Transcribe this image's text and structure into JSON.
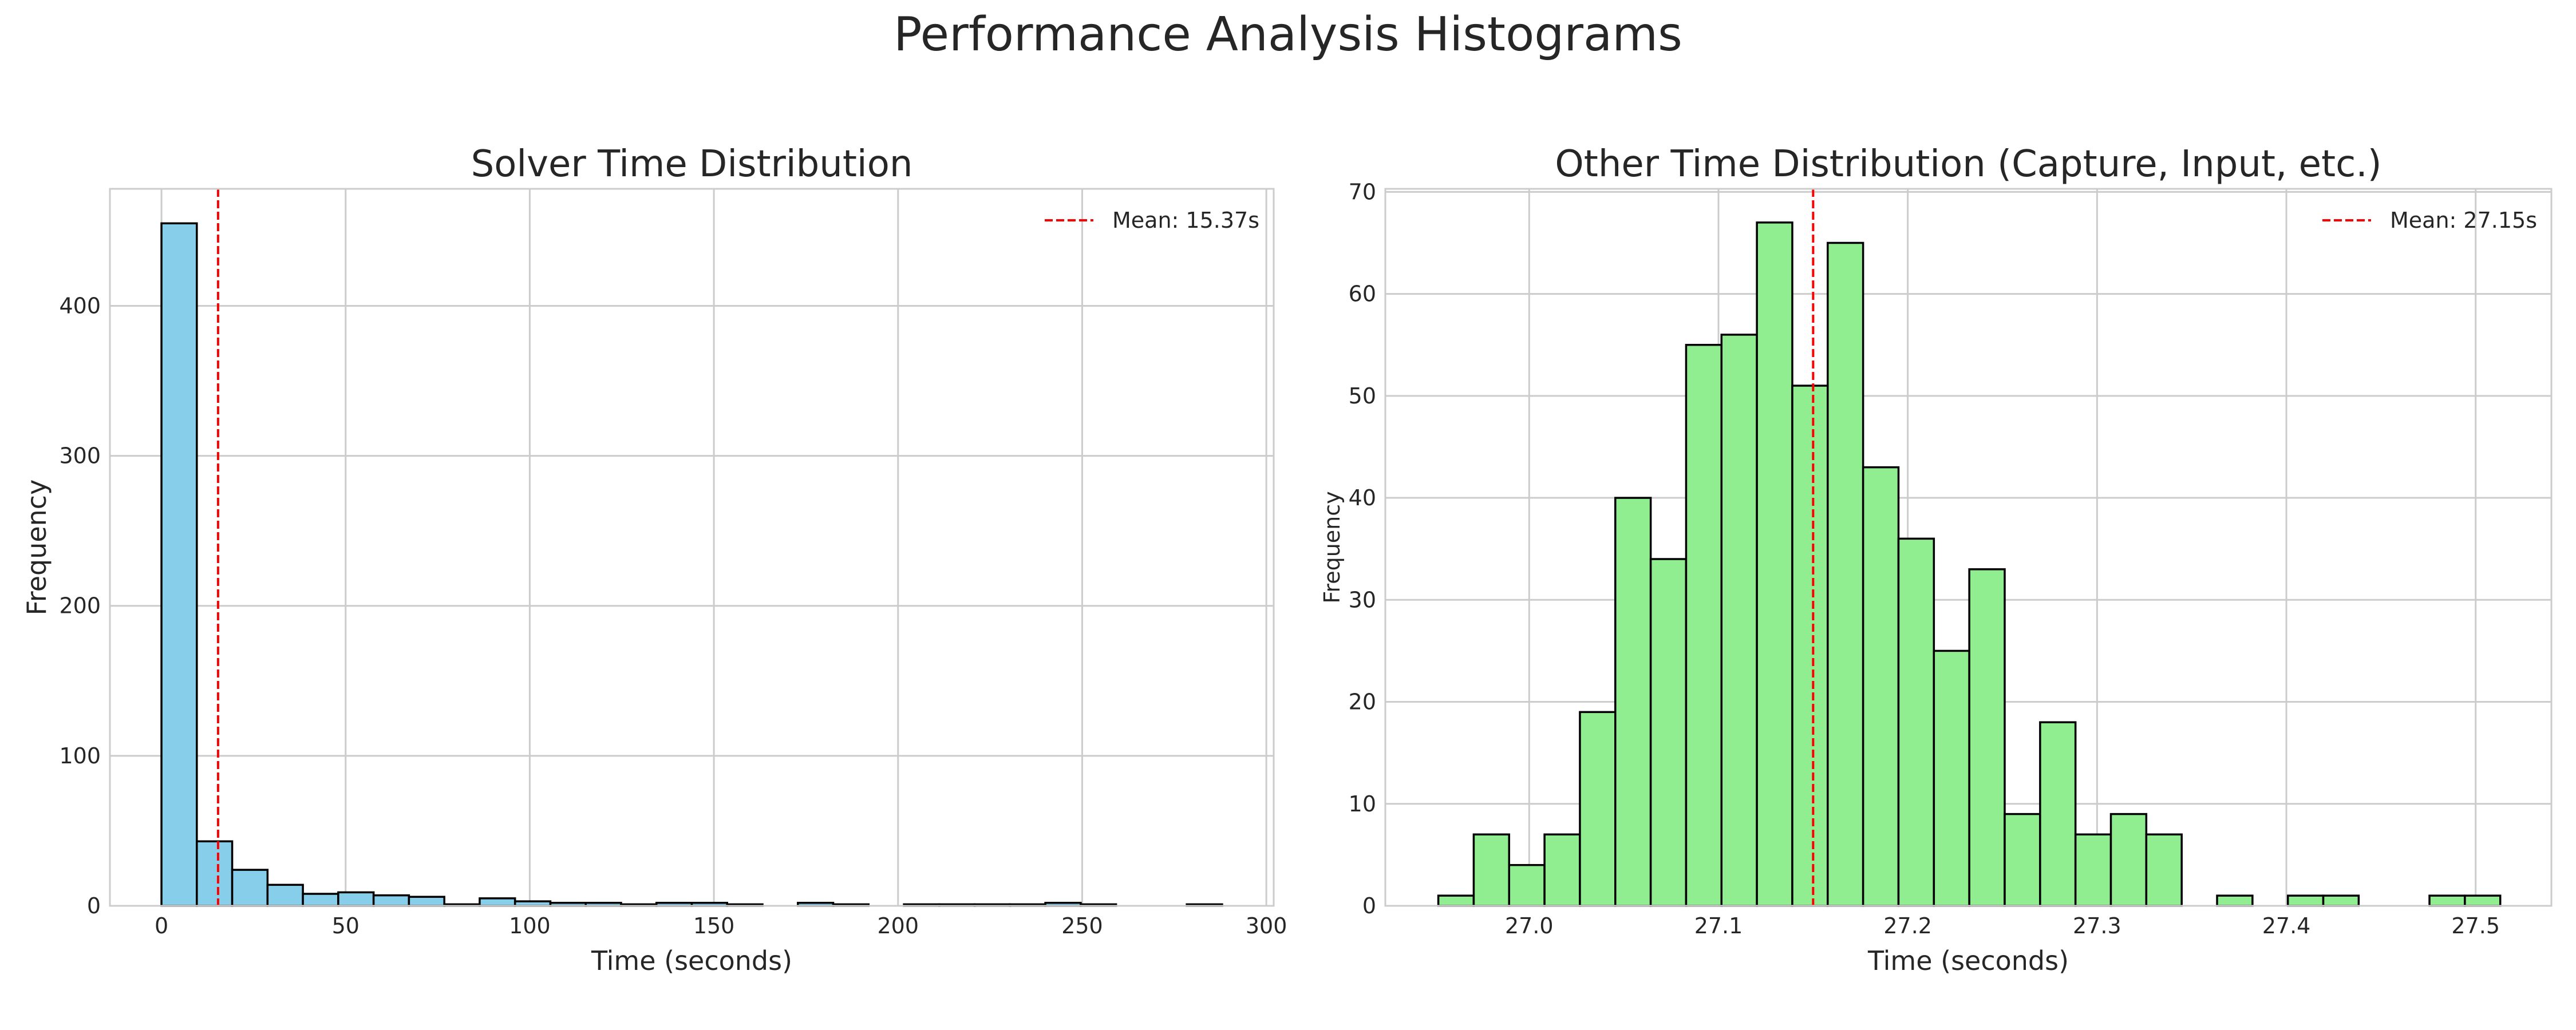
{
  "suptitle": "Performance Analysis Histograms",
  "chart_data": [
    {
      "type": "bar",
      "title": "Solver Time Distribution",
      "xlabel": "Time (seconds)",
      "ylabel": "Frequency",
      "xlim": [
        -14,
        302
      ],
      "ylim": [
        0,
        478
      ],
      "xticks": [
        0,
        50,
        100,
        150,
        200,
        250,
        300
      ],
      "xtick_labels": [
        "0",
        "50",
        "100",
        "150",
        "200",
        "250",
        "300"
      ],
      "yticks": [
        0,
        100,
        200,
        300,
        400
      ],
      "ytick_labels": [
        "0",
        "100",
        "200",
        "300",
        "400"
      ],
      "bin_edges": [
        0,
        9.6,
        19.2,
        28.8,
        38.4,
        48,
        57.6,
        67.2,
        76.8,
        86.4,
        96,
        105.6,
        115.2,
        124.8,
        134.4,
        144,
        153.6,
        163.2,
        172.8,
        182.4,
        192,
        201.6,
        211.2,
        220.8,
        230.4,
        240,
        249.6,
        259.2,
        268.8,
        278.4,
        288
      ],
      "values": [
        455,
        43,
        24,
        14,
        8,
        9,
        7,
        6,
        1,
        5,
        3,
        2,
        2,
        1,
        2,
        2,
        1,
        0,
        2,
        1,
        0,
        1,
        1,
        1,
        1,
        2,
        1,
        0,
        0,
        1
      ],
      "bar_color": "#87ceeb",
      "edge_color": "#000000",
      "mean_line": {
        "value": 15.37,
        "label": "Mean: 15.37s",
        "color": "#ff0000",
        "style": "dashed"
      },
      "legend_position": "top-right",
      "grid": true
    },
    {
      "type": "bar",
      "title": "Other Time Distribution (Capture, Input, etc.)",
      "xlabel": "Time (seconds)",
      "ylabel": "Frequency",
      "xlim": [
        26.924,
        27.54
      ],
      "ylim": [
        0,
        70.3
      ],
      "xticks": [
        27.0,
        27.1,
        27.2,
        27.3,
        27.4,
        27.5
      ],
      "xtick_labels": [
        "27.0",
        "27.1",
        "27.2",
        "27.3",
        "27.4",
        "27.5"
      ],
      "yticks": [
        0,
        10,
        20,
        30,
        40,
        50,
        60,
        70
      ],
      "ytick_labels": [
        "0",
        "10",
        "20",
        "30",
        "40",
        "50",
        "60",
        "70"
      ],
      "bin_edges": [
        26.952,
        26.9707,
        26.9894,
        27.0081,
        27.0268,
        27.0455,
        27.0642,
        27.0829,
        27.1016,
        27.1203,
        27.139,
        27.1577,
        27.1764,
        27.1951,
        27.2138,
        27.2325,
        27.2512,
        27.2699,
        27.2886,
        27.3073,
        27.326,
        27.3447,
        27.3634,
        27.3821,
        27.4008,
        27.4195,
        27.4382,
        27.4569,
        27.4756,
        27.4943,
        27.513
      ],
      "values": [
        1,
        7,
        4,
        7,
        19,
        40,
        34,
        55,
        56,
        67,
        51,
        65,
        43,
        36,
        25,
        33,
        9,
        18,
        7,
        9,
        7,
        0,
        1,
        0,
        1,
        1,
        0,
        0,
        1,
        1
      ],
      "bar_color": "#90ee90",
      "edge_color": "#000000",
      "mean_line": {
        "value": 27.15,
        "label": "Mean: 27.15s",
        "color": "#ff0000",
        "style": "dashed"
      },
      "legend_position": "top-right",
      "grid": true
    }
  ]
}
